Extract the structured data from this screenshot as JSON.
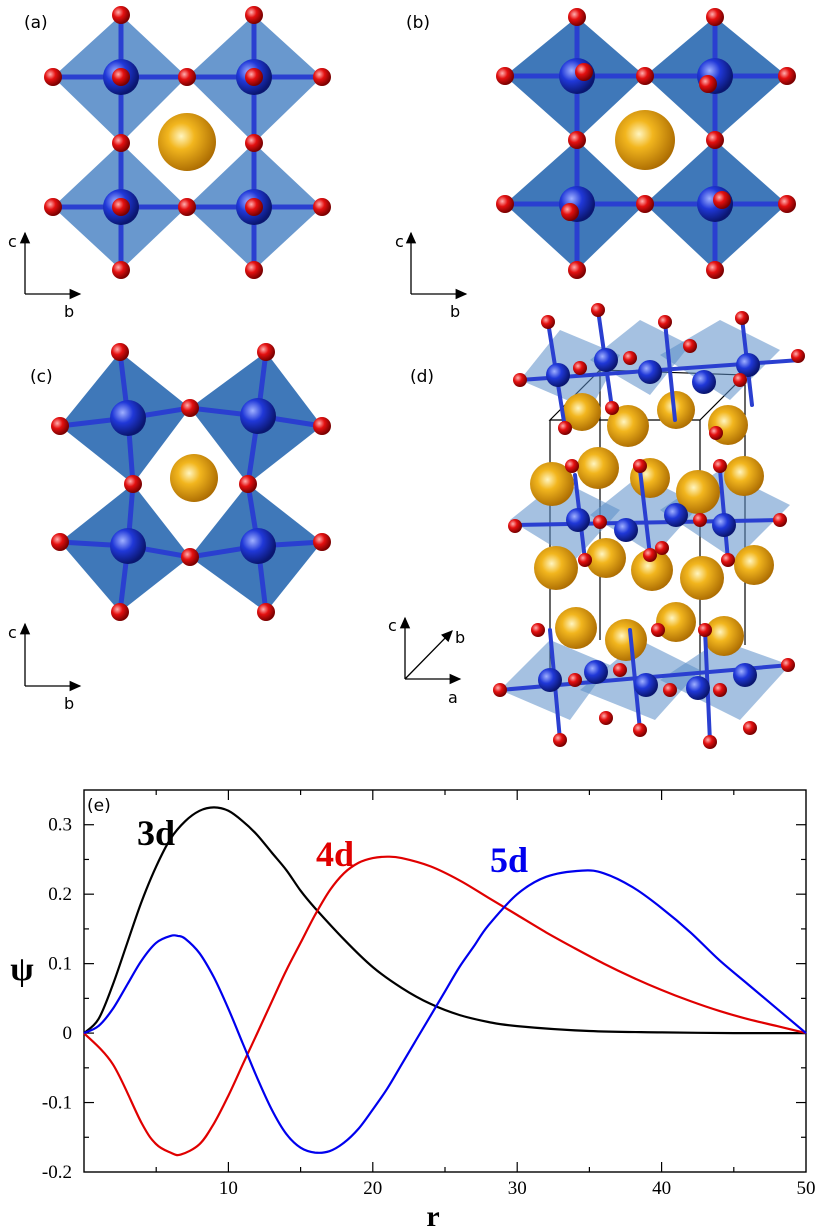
{
  "panels": {
    "a": {
      "label": "(a)",
      "axes": [
        "c",
        "b"
      ]
    },
    "b": {
      "label": "(b)",
      "axes": [
        "c",
        "b"
      ]
    },
    "c": {
      "label": "(c)",
      "axes": [
        "c",
        "b"
      ]
    },
    "d": {
      "label": "(d)",
      "axes": [
        "c",
        "b",
        "a"
      ]
    },
    "e": {
      "label": "(e)"
    }
  },
  "colors": {
    "oxygen": "#e00000",
    "metal": "#1a35c8",
    "octahedron_light": "#5b8ec9",
    "octahedron_dark": "#2f6db3",
    "a_site": "#e8a317"
  },
  "chart_data": {
    "type": "line",
    "xlabel": "r",
    "ylabel": "ψ",
    "xlim": [
      0,
      50
    ],
    "ylim": [
      -0.2,
      0.35
    ],
    "xticks": [
      "10",
      "20",
      "30",
      "40",
      "50"
    ],
    "yticks": [
      "-0.2",
      "-0.1",
      "0",
      "0.1",
      "0.2",
      "0.3"
    ],
    "series": [
      {
        "name": "3d",
        "color": "#000000",
        "x": [
          0,
          1,
          2,
          3,
          4,
          5,
          6,
          7,
          8,
          9,
          10,
          11,
          12,
          13,
          14,
          15,
          16,
          18,
          20,
          22,
          24,
          26,
          28,
          30,
          35,
          40,
          45,
          50
        ],
        "y": [
          0,
          0.02,
          0.07,
          0.13,
          0.19,
          0.24,
          0.28,
          0.305,
          0.32,
          0.325,
          0.32,
          0.305,
          0.285,
          0.26,
          0.235,
          0.205,
          0.18,
          0.135,
          0.095,
          0.065,
          0.042,
          0.026,
          0.016,
          0.01,
          0.003,
          0.001,
          0,
          0
        ]
      },
      {
        "name": "4d",
        "color": "#e00000",
        "x": [
          0,
          2,
          4,
          5,
          6,
          6.7,
          8,
          9,
          10,
          11,
          12,
          13,
          14,
          15,
          16,
          17,
          18,
          19,
          20,
          21,
          22,
          24,
          26,
          28,
          30,
          32,
          34,
          36,
          38,
          40,
          42,
          44,
          46,
          48,
          50
        ],
        "y": [
          0,
          -0.045,
          -0.13,
          -0.16,
          -0.172,
          -0.175,
          -0.16,
          -0.13,
          -0.09,
          -0.045,
          0,
          0.045,
          0.09,
          0.13,
          0.17,
          0.205,
          0.23,
          0.245,
          0.252,
          0.254,
          0.252,
          0.24,
          0.22,
          0.195,
          0.17,
          0.145,
          0.122,
          0.1,
          0.08,
          0.062,
          0.046,
          0.032,
          0.02,
          0.01,
          0
        ]
      },
      {
        "name": "5d",
        "color": "#0000ee",
        "x": [
          0,
          1,
          2,
          3,
          4,
          5,
          6,
          6.5,
          7,
          8,
          9,
          10,
          11,
          12,
          13,
          14,
          15,
          16,
          17,
          18,
          19,
          20,
          21,
          22,
          23,
          24,
          25,
          26,
          27,
          28,
          30,
          32,
          34.5,
          36,
          38,
          40,
          42,
          44,
          46,
          48,
          50
        ],
        "y": [
          0,
          0.01,
          0.035,
          0.07,
          0.105,
          0.13,
          0.14,
          0.14,
          0.136,
          0.115,
          0.08,
          0.035,
          -0.015,
          -0.065,
          -0.11,
          -0.145,
          -0.165,
          -0.172,
          -0.17,
          -0.158,
          -0.138,
          -0.11,
          -0.08,
          -0.045,
          -0.01,
          0.025,
          0.06,
          0.095,
          0.125,
          0.155,
          0.2,
          0.225,
          0.234,
          0.23,
          0.21,
          0.18,
          0.145,
          0.105,
          0.07,
          0.035,
          0
        ]
      }
    ]
  }
}
